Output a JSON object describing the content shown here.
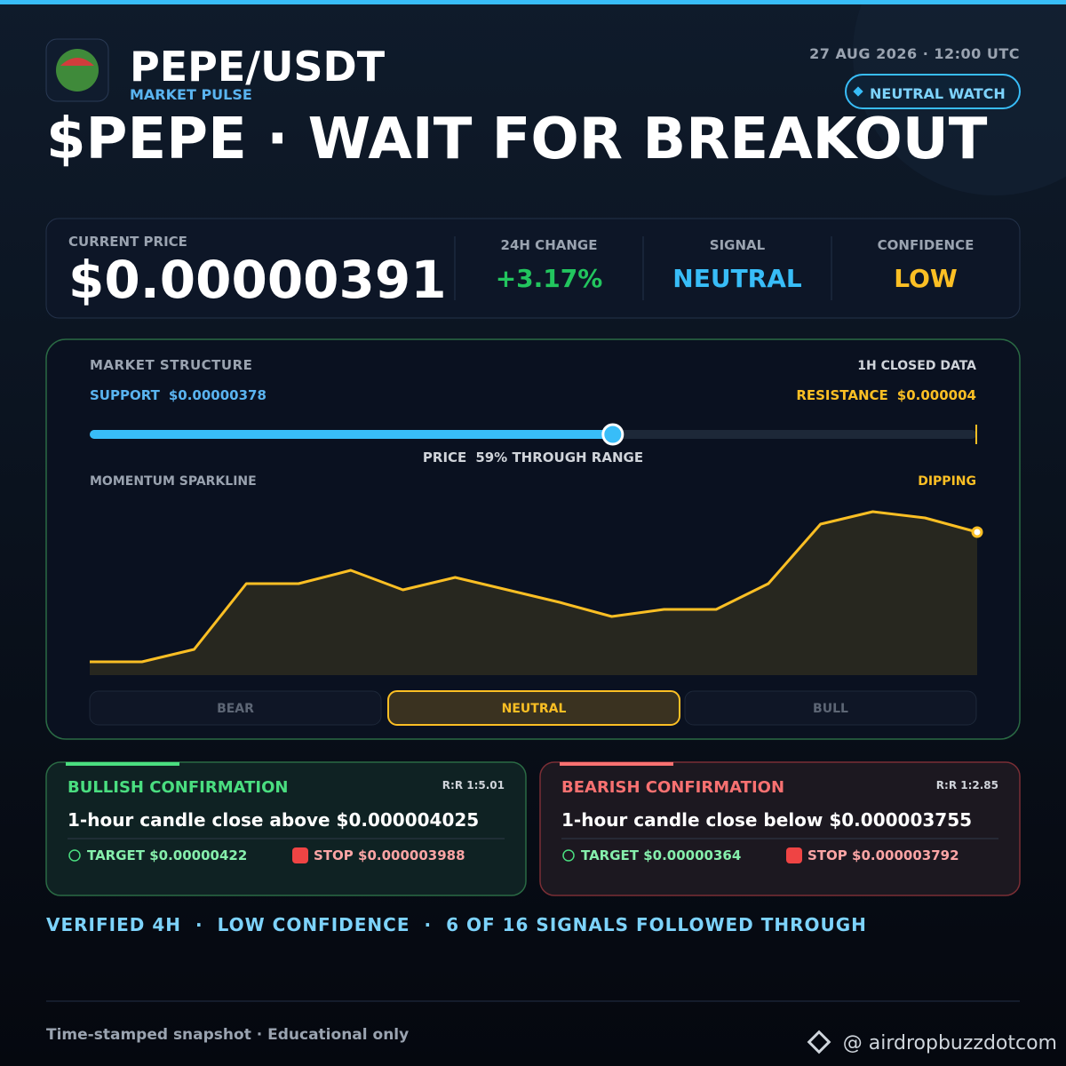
{
  "header": {
    "pair": "PEPE/USDT",
    "subtitle": "MARKET PULSE",
    "timestamp": "27 AUG 2026 · 12:00 UTC",
    "badge": "NEUTRAL WATCH",
    "headline": "$PEPE · WAIT FOR BREAKOUT"
  },
  "stats": {
    "price_label": "CURRENT PRICE",
    "price": "$0.00000391",
    "items": [
      {
        "label": "24H CHANGE",
        "value": "+3.17%",
        "color": "#22c55e"
      },
      {
        "label": "SIGNAL",
        "value": "NEUTRAL",
        "color": "#38bdf8"
      },
      {
        "label": "CONFIDENCE",
        "value": "LOW",
        "color": "#fbbf24"
      }
    ]
  },
  "structure": {
    "title": "MARKET STRUCTURE",
    "source": "1H CLOSED DATA",
    "support": {
      "label": "SUPPORT",
      "value": "$0.00000378"
    },
    "resistance": {
      "label": "RESISTANCE",
      "value": "$0.000004"
    },
    "range": {
      "label": "PRICE",
      "value": 59,
      "value_label": "59% THROUGH RANGE"
    },
    "sparkline": {
      "type": "line",
      "title": "MOMENTUM SPARKLINE",
      "status": "DIPPING",
      "color": "#fbbf24",
      "values": [
        15,
        15,
        29,
        103,
        103,
        118,
        96,
        110,
        96,
        82,
        66,
        74,
        74,
        103,
        170,
        184,
        177,
        161
      ],
      "ylim": [
        0,
        190
      ]
    },
    "sentiment": {
      "options": [
        "BEAR",
        "NEUTRAL",
        "BULL"
      ],
      "active": 1
    }
  },
  "confirmations": [
    {
      "title": "BULLISH CONFIRMATION",
      "rr": "R:R 1:5.01",
      "condition": "1-hour candle close above $0.000004025",
      "target": "TARGET $0.00000422",
      "stop": "STOP $0.000003988",
      "color": "#4ade80"
    },
    {
      "title": "BEARISH CONFIRMATION",
      "rr": "R:R 1:2.85",
      "condition": "1-hour candle close below $0.000003755",
      "target": "TARGET $0.00000364",
      "stop": "STOP $0.000003792",
      "color": "#f87171"
    }
  ],
  "footer_stats": [
    "VERIFIED 4H",
    "LOW CONFIDENCE",
    "6 OF 16 SIGNALS FOLLOWED THROUGH"
  ],
  "disclaimer": "Time-stamped snapshot · Educational only",
  "handle": "@ airdropbuzzdotcom"
}
